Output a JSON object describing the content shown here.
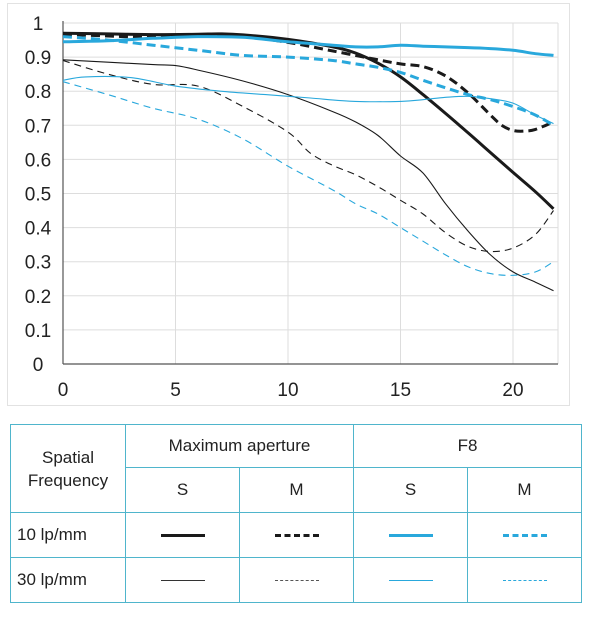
{
  "chart_data": {
    "type": "line",
    "xlim": [
      0,
      22
    ],
    "ylim": [
      0,
      1
    ],
    "x_ticks": [
      "0",
      "5",
      "10",
      "15",
      "20"
    ],
    "y_ticks": [
      "0",
      "0.1",
      "0.2",
      "0.3",
      "0.4",
      "0.5",
      "0.6",
      "0.7",
      "0.8",
      "0.9",
      "1"
    ],
    "grid": true,
    "colors": {
      "max_aperture": "#1a1a1a",
      "f8": "#29a8dc",
      "grid": "#dddddd",
      "axis": "#555555",
      "table_border": "#4fb5cc"
    },
    "series": [
      {
        "aperture": "Maximum aperture",
        "frequency": "10 lp/mm",
        "orientation": "S",
        "x": [
          0,
          2,
          4,
          6,
          7,
          8,
          10,
          12,
          13,
          14,
          15,
          16,
          17,
          18,
          19,
          20,
          21,
          21.8
        ],
        "y": [
          0.97,
          0.968,
          0.966,
          0.967,
          0.968,
          0.965,
          0.952,
          0.93,
          0.912,
          0.882,
          0.842,
          0.79,
          0.735,
          0.678,
          0.62,
          0.562,
          0.505,
          0.455
        ]
      },
      {
        "aperture": "Maximum aperture",
        "frequency": "10 lp/mm",
        "orientation": "M",
        "x": [
          0,
          2,
          4,
          6,
          8,
          10,
          12,
          14,
          15,
          16,
          17,
          18,
          19,
          19.5,
          20,
          20.5,
          21,
          21.8
        ],
        "y": [
          0.967,
          0.962,
          0.958,
          0.962,
          0.96,
          0.943,
          0.918,
          0.892,
          0.88,
          0.872,
          0.845,
          0.795,
          0.73,
          0.7,
          0.685,
          0.683,
          0.688,
          0.71
        ]
      },
      {
        "aperture": "F8",
        "frequency": "10 lp/mm",
        "orientation": "S",
        "x": [
          0,
          2,
          4,
          6,
          8,
          10,
          12,
          13,
          14,
          15,
          16,
          17,
          18,
          19,
          20,
          21,
          21.8
        ],
        "y": [
          0.945,
          0.948,
          0.955,
          0.96,
          0.958,
          0.945,
          0.935,
          0.93,
          0.93,
          0.935,
          0.932,
          0.93,
          0.928,
          0.925,
          0.92,
          0.91,
          0.905
        ]
      },
      {
        "aperture": "F8",
        "frequency": "10 lp/mm",
        "orientation": "M",
        "x": [
          0,
          2,
          4,
          6,
          8,
          10,
          12,
          13,
          14,
          15,
          16,
          17,
          18,
          19,
          20,
          21,
          21.8
        ],
        "y": [
          0.96,
          0.95,
          0.935,
          0.92,
          0.905,
          0.9,
          0.89,
          0.88,
          0.87,
          0.855,
          0.832,
          0.81,
          0.79,
          0.775,
          0.755,
          0.73,
          0.7
        ]
      },
      {
        "aperture": "Maximum aperture",
        "frequency": "30 lp/mm",
        "orientation": "S",
        "x": [
          0,
          2,
          4,
          5,
          6,
          8,
          10,
          12,
          13,
          14,
          15,
          16,
          17,
          18,
          19,
          20,
          21,
          21.8
        ],
        "y": [
          0.892,
          0.885,
          0.878,
          0.875,
          0.862,
          0.83,
          0.79,
          0.74,
          0.71,
          0.67,
          0.61,
          0.56,
          0.47,
          0.39,
          0.32,
          0.27,
          0.24,
          0.215
        ]
      },
      {
        "aperture": "Maximum aperture",
        "frequency": "30 lp/mm",
        "orientation": "M",
        "x": [
          0,
          2,
          4,
          6,
          8,
          10,
          11,
          12,
          13,
          14,
          15,
          16,
          17,
          18,
          19,
          20,
          21,
          21.8
        ],
        "y": [
          0.89,
          0.85,
          0.82,
          0.815,
          0.755,
          0.68,
          0.618,
          0.582,
          0.555,
          0.52,
          0.48,
          0.44,
          0.385,
          0.345,
          0.33,
          0.34,
          0.38,
          0.45
        ]
      },
      {
        "aperture": "F8",
        "frequency": "30 lp/mm",
        "orientation": "S",
        "x": [
          0,
          1,
          3,
          5,
          7,
          9,
          11,
          13,
          15,
          16,
          17,
          18,
          19,
          20,
          21,
          21.8
        ],
        "y": [
          0.832,
          0.842,
          0.84,
          0.815,
          0.8,
          0.79,
          0.78,
          0.77,
          0.77,
          0.775,
          0.782,
          0.785,
          0.778,
          0.765,
          0.73,
          0.705
        ]
      },
      {
        "aperture": "F8",
        "frequency": "30 lp/mm",
        "orientation": "M",
        "x": [
          0,
          2,
          4,
          6,
          8,
          10,
          12,
          13,
          14,
          15,
          16,
          17,
          18,
          19,
          20,
          21,
          21.8
        ],
        "y": [
          0.828,
          0.79,
          0.75,
          0.718,
          0.66,
          0.58,
          0.51,
          0.47,
          0.44,
          0.4,
          0.36,
          0.32,
          0.285,
          0.265,
          0.26,
          0.27,
          0.3
        ]
      }
    ]
  },
  "legend": {
    "spatial_line1": "Spatial",
    "spatial_line2": "Frequency",
    "max_aperture": "Maximum aperture",
    "f8": "F8",
    "s": "S",
    "m": "M",
    "row10": "10 lp/mm",
    "row30": "30 lp/mm"
  }
}
